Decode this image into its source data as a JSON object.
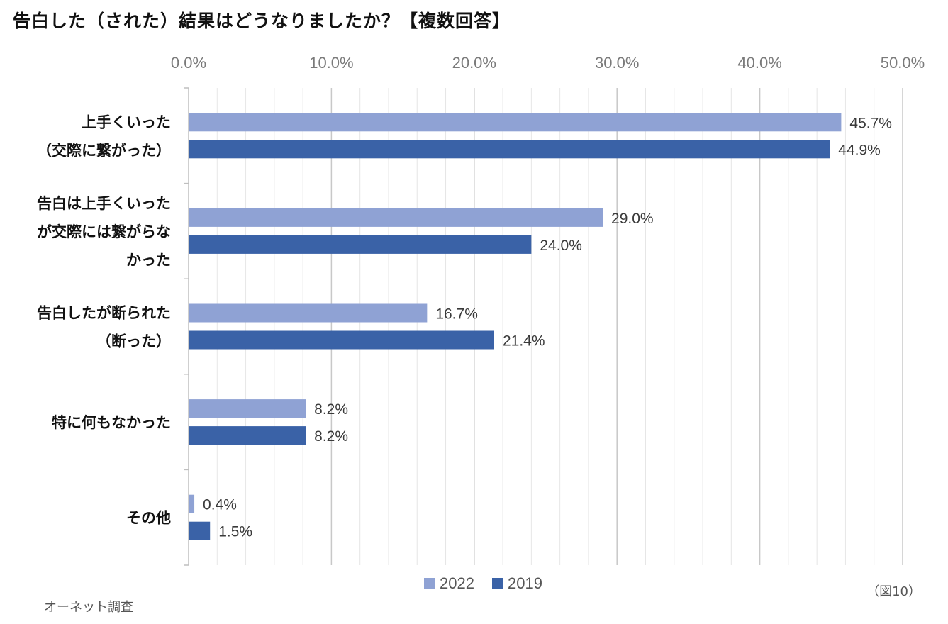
{
  "chart_data": {
    "type": "bar",
    "orientation": "horizontal",
    "title": "告白した（された）結果はどうなりましたか？【複数回答】",
    "categories": [
      [
        "上手くいった",
        "（交際に繋がった）"
      ],
      [
        "告白は上手くいった",
        "が交際には繋がらな",
        "かった"
      ],
      [
        "告白したが断られた",
        "（断った）"
      ],
      [
        "特に何もなかった"
      ],
      [
        "その他"
      ]
    ],
    "series": [
      {
        "name": "2022",
        "color": "#8fa2d4",
        "values": [
          45.7,
          29.0,
          16.7,
          8.2,
          0.4
        ]
      },
      {
        "name": "2019",
        "color": "#3a62a7",
        "values": [
          44.9,
          24.0,
          21.4,
          8.2,
          1.5
        ]
      }
    ],
    "xlim": [
      0,
      50
    ],
    "ticks": [
      "0.0%",
      "10.0%",
      "20.0%",
      "30.0%",
      "40.0%",
      "50.0%"
    ],
    "tick_values": [
      0,
      10,
      20,
      30,
      40,
      50
    ],
    "minor_grid_step": 2,
    "value_suffix": "%",
    "legend_position": "bottom",
    "grid": true
  },
  "notes": {
    "figure_number": "（図10）",
    "source": "オーネット調査"
  }
}
